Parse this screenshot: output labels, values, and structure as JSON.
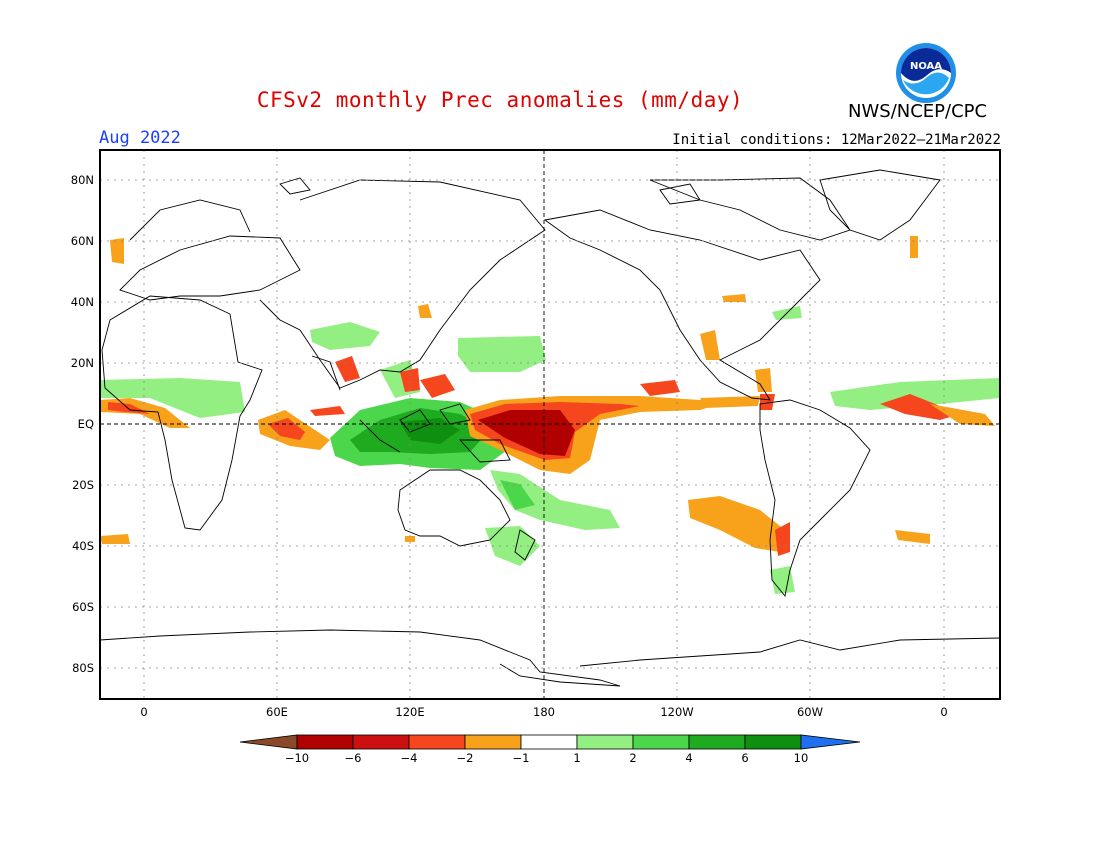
{
  "title": "CFSv2 monthly Prec anomalies (mm/day)",
  "valid_month": "Aug 2022",
  "initial_conditions": "Initial conditions: 12Mar2022–21Mar2022",
  "agency": "NWS/NCEP/CPC",
  "logo_text": "NOAA",
  "map": {
    "lat_labels": [
      "80N",
      "60N",
      "40N",
      "20N",
      "EQ",
      "20S",
      "40S",
      "60S",
      "80S"
    ],
    "lon_labels": [
      "0",
      "60E",
      "120E",
      "180",
      "120W",
      "60W",
      "0"
    ]
  },
  "colorbar": {
    "labels": [
      "−10",
      "−6",
      "−4",
      "−2",
      "−1",
      "1",
      "2",
      "4",
      "6",
      "10"
    ],
    "colors": [
      "#8a4a2a",
      "#b00000",
      "#cc0f0f",
      "#f5461e",
      "#f8a21c",
      "#ffffff",
      "#93ef82",
      "#4bd64b",
      "#1fab1f",
      "#0f8f0f",
      "#1f70ee"
    ]
  },
  "colors": {
    "title": "#e00000",
    "month": "#1a3fff",
    "wet_light": "#93ef82",
    "wet_mid": "#4bd64b",
    "wet_dark": "#1fab1f",
    "dry_orange": "#f8a21c",
    "dry_red": "#f5461e",
    "dry_dark": "#b00000"
  }
}
